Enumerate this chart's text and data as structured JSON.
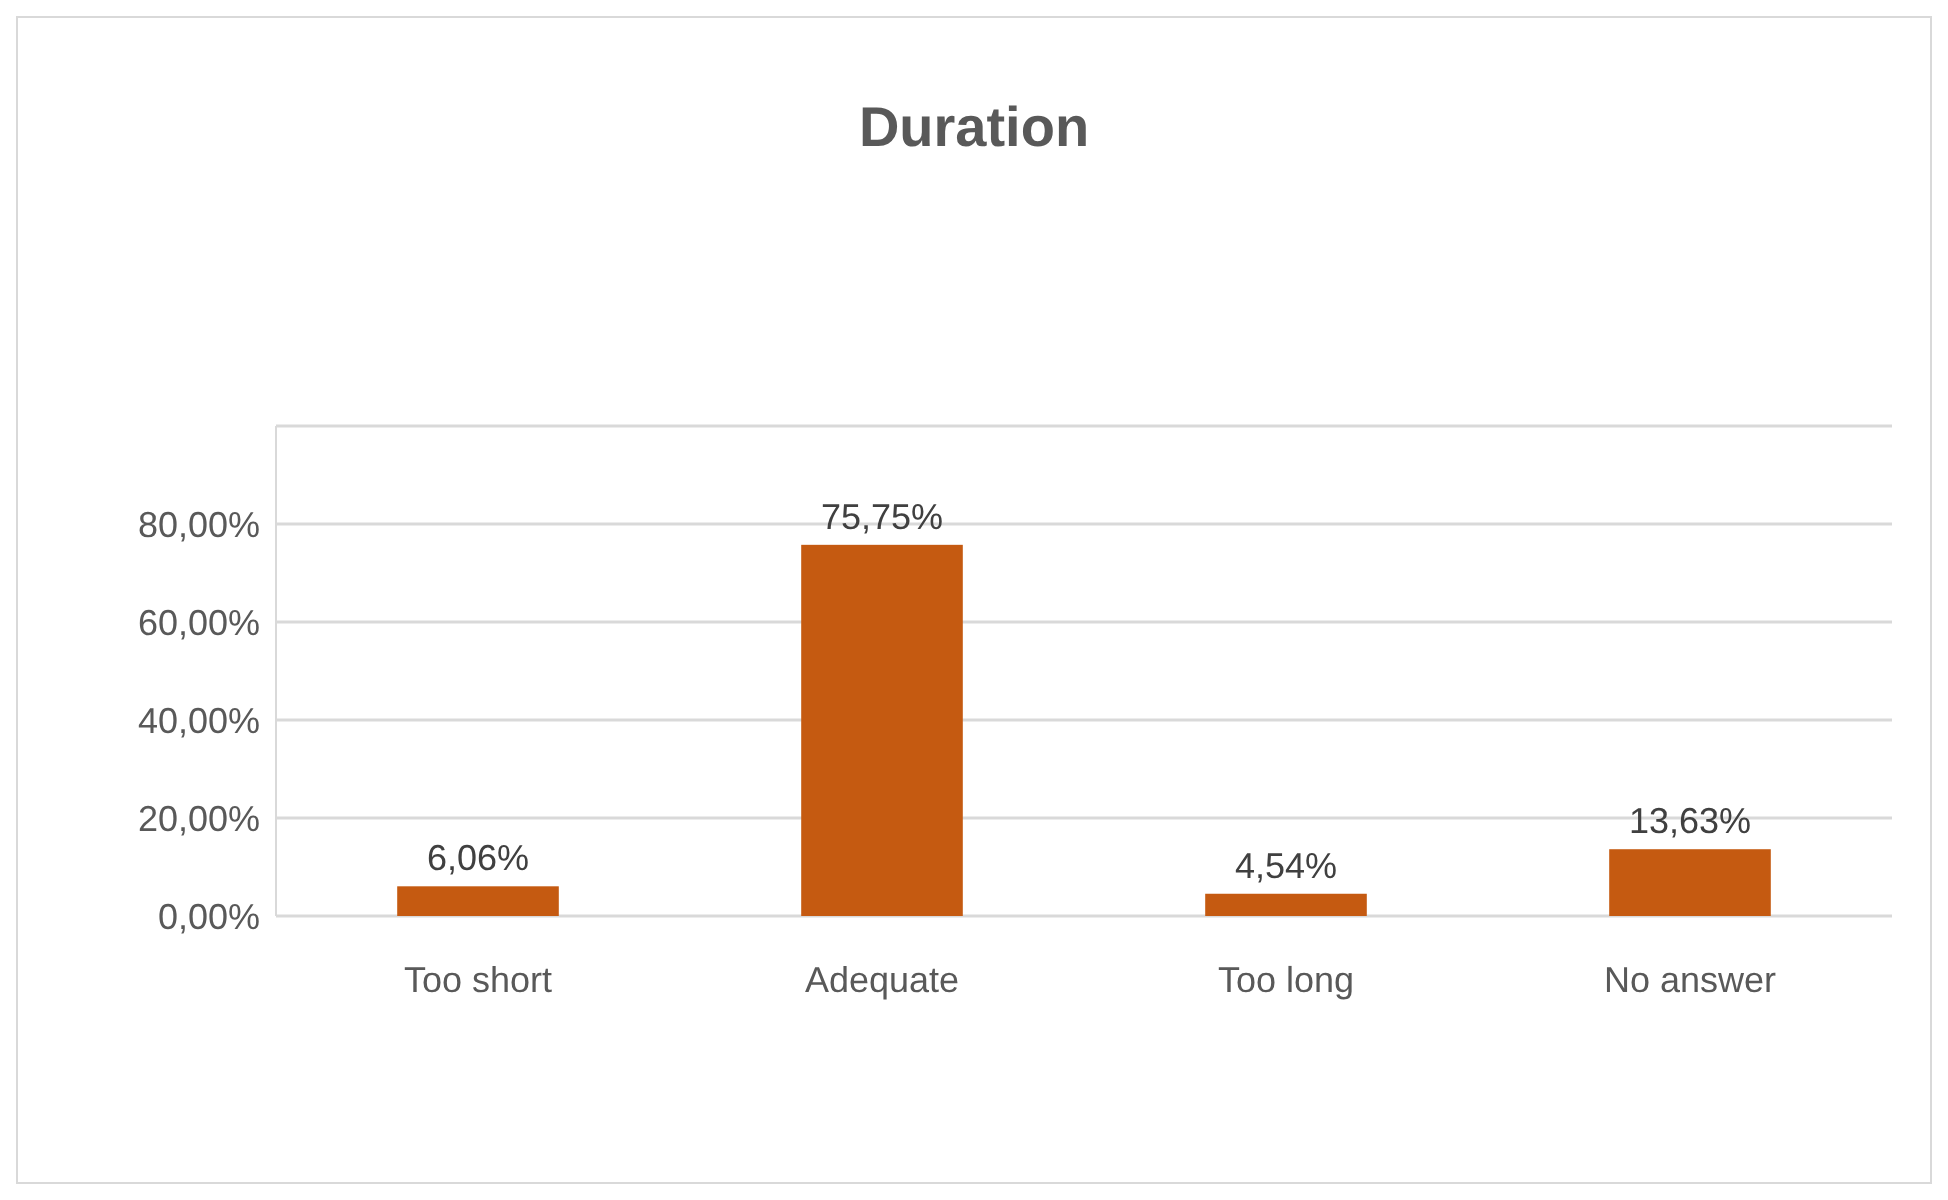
{
  "chart_data": {
    "type": "bar",
    "title": "Duration",
    "categories": [
      "Too short",
      "Adequate",
      "Too long",
      "No answer"
    ],
    "values": [
      6.06,
      75.75,
      4.54,
      13.63
    ],
    "value_labels": [
      "6,06%",
      "75,75%",
      "4,54%",
      "13,63%"
    ],
    "color": "#c55a11",
    "ylim": [
      0,
      100
    ],
    "yticks": [
      {
        "value": 0,
        "label": "0,00%"
      },
      {
        "value": 20,
        "label": "20,00%"
      },
      {
        "value": 40,
        "label": "40,00%"
      },
      {
        "value": 60,
        "label": "60,00%"
      },
      {
        "value": 80,
        "label": "80,00%"
      },
      {
        "value": 100,
        "label": null
      }
    ],
    "grid": true
  }
}
